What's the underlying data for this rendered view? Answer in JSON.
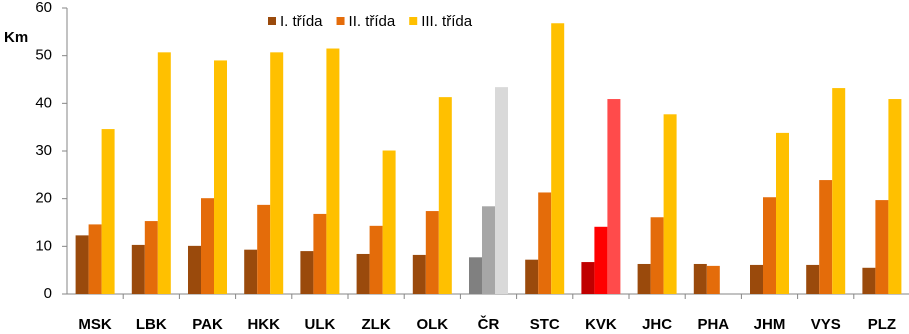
{
  "chart_data": {
    "type": "bar",
    "y_label": "Km",
    "categories": [
      "MSK",
      "LBK",
      "PAK",
      "HKK",
      "ULK",
      "ZLK",
      "OLK",
      "ČR",
      "STC",
      "KVK",
      "JHC",
      "PHA",
      "JHM",
      "VYS",
      "PLZ"
    ],
    "series": [
      {
        "name": "I. třída",
        "color": "#9a4a0c",
        "colors": [
          "#9a4a0c",
          "#9a4a0c",
          "#9a4a0c",
          "#9a4a0c",
          "#9a4a0c",
          "#9a4a0c",
          "#9a4a0c",
          "#808080",
          "#9a4a0c",
          "#c00000",
          "#9a4a0c",
          "#9a4a0c",
          "#9a4a0c",
          "#9a4a0c",
          "#9a4a0c"
        ],
        "values": [
          12.3,
          10.3,
          10.1,
          9.3,
          9.0,
          8.4,
          8.2,
          7.7,
          7.2,
          6.7,
          6.3,
          6.3,
          6.1,
          6.1,
          5.5
        ]
      },
      {
        "name": "II. třída",
        "color": "#e46c0a",
        "colors": [
          "#e46c0a",
          "#e46c0a",
          "#e46c0a",
          "#e46c0a",
          "#e46c0a",
          "#e46c0a",
          "#e46c0a",
          "#a6a6a6",
          "#e46c0a",
          "#ff0000",
          "#e46c0a",
          "#e46c0a",
          "#e46c0a",
          "#e46c0a",
          "#e46c0a"
        ],
        "values": [
          14.6,
          15.3,
          20.1,
          18.7,
          16.8,
          14.3,
          17.4,
          18.4,
          21.3,
          14.1,
          16.1,
          5.9,
          20.3,
          23.9,
          19.7
        ]
      },
      {
        "name": "III. třída",
        "color": "#ffc000",
        "colors": [
          "#ffc000",
          "#ffc000",
          "#ffc000",
          "#ffc000",
          "#ffc000",
          "#ffc000",
          "#ffc000",
          "#d9d9d9",
          "#ffc000",
          "#ff4b4b",
          "#ffc000",
          "#ffc000",
          "#ffc000",
          "#ffc000",
          "#ffc000"
        ],
        "values": [
          34.6,
          50.7,
          49.0,
          50.7,
          51.5,
          30.1,
          41.3,
          43.4,
          56.8,
          40.9,
          37.7,
          null,
          33.8,
          43.2,
          40.9
        ]
      }
    ],
    "ylim": [
      0,
      60
    ],
    "yticks": [
      0,
      10,
      20,
      30,
      40,
      50,
      60
    ],
    "grid": false,
    "legend": "top"
  }
}
